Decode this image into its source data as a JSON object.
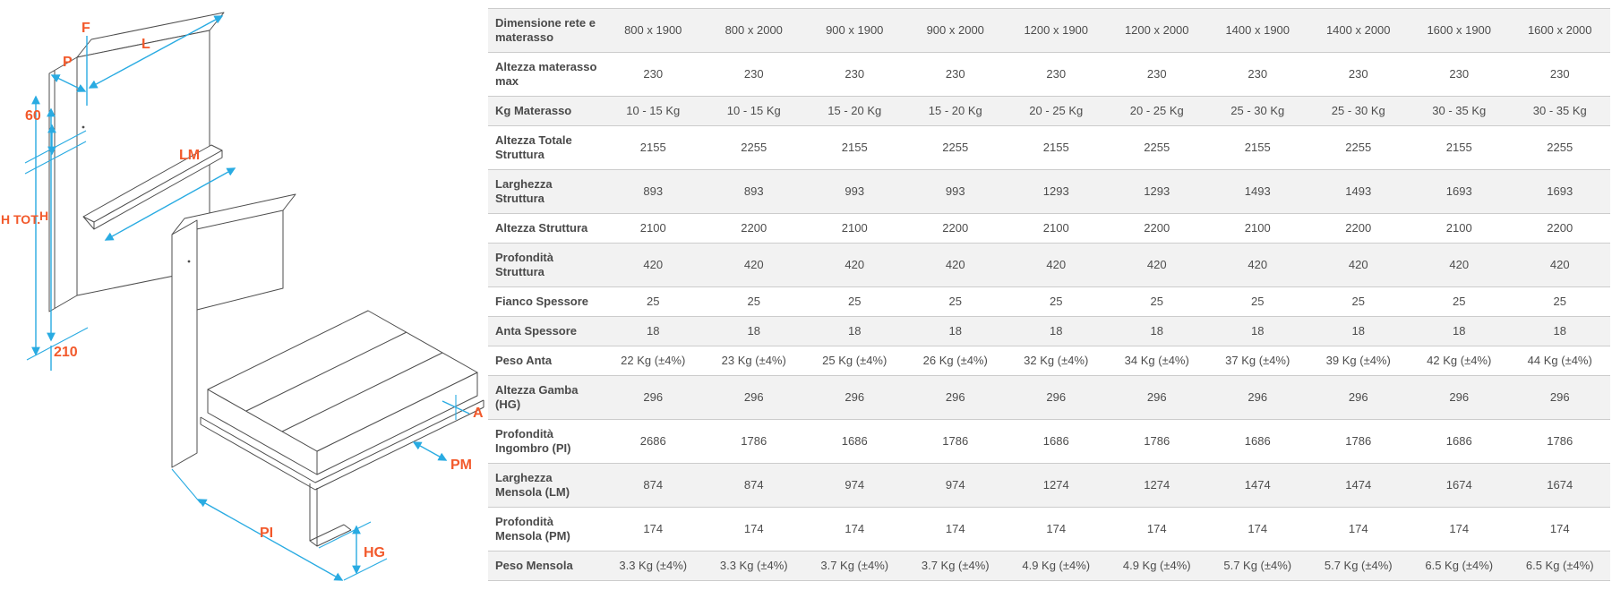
{
  "table": {
    "rows": [
      {
        "label": "Dimensione rete e materasso",
        "values": [
          "800 x 1900",
          "800 x 2000",
          "900 x 1900",
          "900 x 2000",
          "1200 x 1900",
          "1200 x 2000",
          "1400 x 1900",
          "1400 x 2000",
          "1600 x 1900",
          "1600 x 2000"
        ]
      },
      {
        "label": "Altezza materasso max",
        "values": [
          "230",
          "230",
          "230",
          "230",
          "230",
          "230",
          "230",
          "230",
          "230",
          "230"
        ]
      },
      {
        "label": "Kg Materasso",
        "values": [
          "10 - 15 Kg",
          "10 - 15 Kg",
          "15 - 20 Kg",
          "15 - 20 Kg",
          "20 - 25 Kg",
          "20 - 25 Kg",
          "25 - 30 Kg",
          "25 - 30 Kg",
          "30 - 35 Kg",
          "30 - 35 Kg"
        ]
      },
      {
        "label": "Altezza Totale Struttura",
        "values": [
          "2155",
          "2255",
          "2155",
          "2255",
          "2155",
          "2255",
          "2155",
          "2255",
          "2155",
          "2255"
        ]
      },
      {
        "label": "Larghezza Struttura",
        "values": [
          "893",
          "893",
          "993",
          "993",
          "1293",
          "1293",
          "1493",
          "1493",
          "1693",
          "1693"
        ]
      },
      {
        "label": "Altezza Struttura",
        "values": [
          "2100",
          "2200",
          "2100",
          "2200",
          "2100",
          "2200",
          "2100",
          "2200",
          "2100",
          "2200"
        ]
      },
      {
        "label": "Profondità Struttura",
        "values": [
          "420",
          "420",
          "420",
          "420",
          "420",
          "420",
          "420",
          "420",
          "420",
          "420"
        ]
      },
      {
        "label": "Fianco Spessore",
        "values": [
          "25",
          "25",
          "25",
          "25",
          "25",
          "25",
          "25",
          "25",
          "25",
          "25"
        ]
      },
      {
        "label": "Anta Spessore",
        "values": [
          "18",
          "18",
          "18",
          "18",
          "18",
          "18",
          "18",
          "18",
          "18",
          "18"
        ]
      },
      {
        "label": "Peso Anta",
        "values": [
          "22 Kg (±4%)",
          "23 Kg (±4%)",
          "25 Kg (±4%)",
          "26 Kg (±4%)",
          "32 Kg (±4%)",
          "34 Kg (±4%)",
          "37 Kg (±4%)",
          "39 Kg (±4%)",
          "42 Kg (±4%)",
          "44 Kg (±4%)"
        ]
      },
      {
        "label": "Altezza Gamba (HG)",
        "values": [
          "296",
          "296",
          "296",
          "296",
          "296",
          "296",
          "296",
          "296",
          "296",
          "296"
        ]
      },
      {
        "label": "Profondità Ingombro (PI)",
        "values": [
          "2686",
          "1786",
          "1686",
          "1786",
          "1686",
          "1786",
          "1686",
          "1786",
          "1686",
          "1786"
        ]
      },
      {
        "label": "Larghezza Mensola (LM)",
        "values": [
          "874",
          "874",
          "974",
          "974",
          "1274",
          "1274",
          "1474",
          "1474",
          "1674",
          "1674"
        ]
      },
      {
        "label": "Profondità Mensola (PM)",
        "values": [
          "174",
          "174",
          "174",
          "174",
          "174",
          "174",
          "174",
          "174",
          "174",
          "174"
        ]
      },
      {
        "label": "Peso Mensola",
        "values": [
          "3.3 Kg (±4%)",
          "3.3 Kg (±4%)",
          "3.7 Kg (±4%)",
          "3.7 Kg (±4%)",
          "4.9 Kg (±4%)",
          "4.9 Kg (±4%)",
          "5.7 Kg (±4%)",
          "5.7 Kg (±4%)",
          "6.5 Kg (±4%)",
          "6.5 Kg (±4%)"
        ]
      }
    ]
  },
  "diagram": {
    "labels": {
      "f": "F",
      "p": "P",
      "l": "L",
      "sixty": "60",
      "lm": "LM",
      "h_tot": "H TOT.",
      "h": "H",
      "two_ten": "210",
      "a": "A",
      "pm": "PM",
      "pi": "PI",
      "hg": "HG"
    }
  },
  "colors": {
    "accent_orange": "#F2592B",
    "dimension_blue": "#29ABE2",
    "stripe_gray": "#F2F2F2",
    "table_text": "#4D4D4D"
  }
}
